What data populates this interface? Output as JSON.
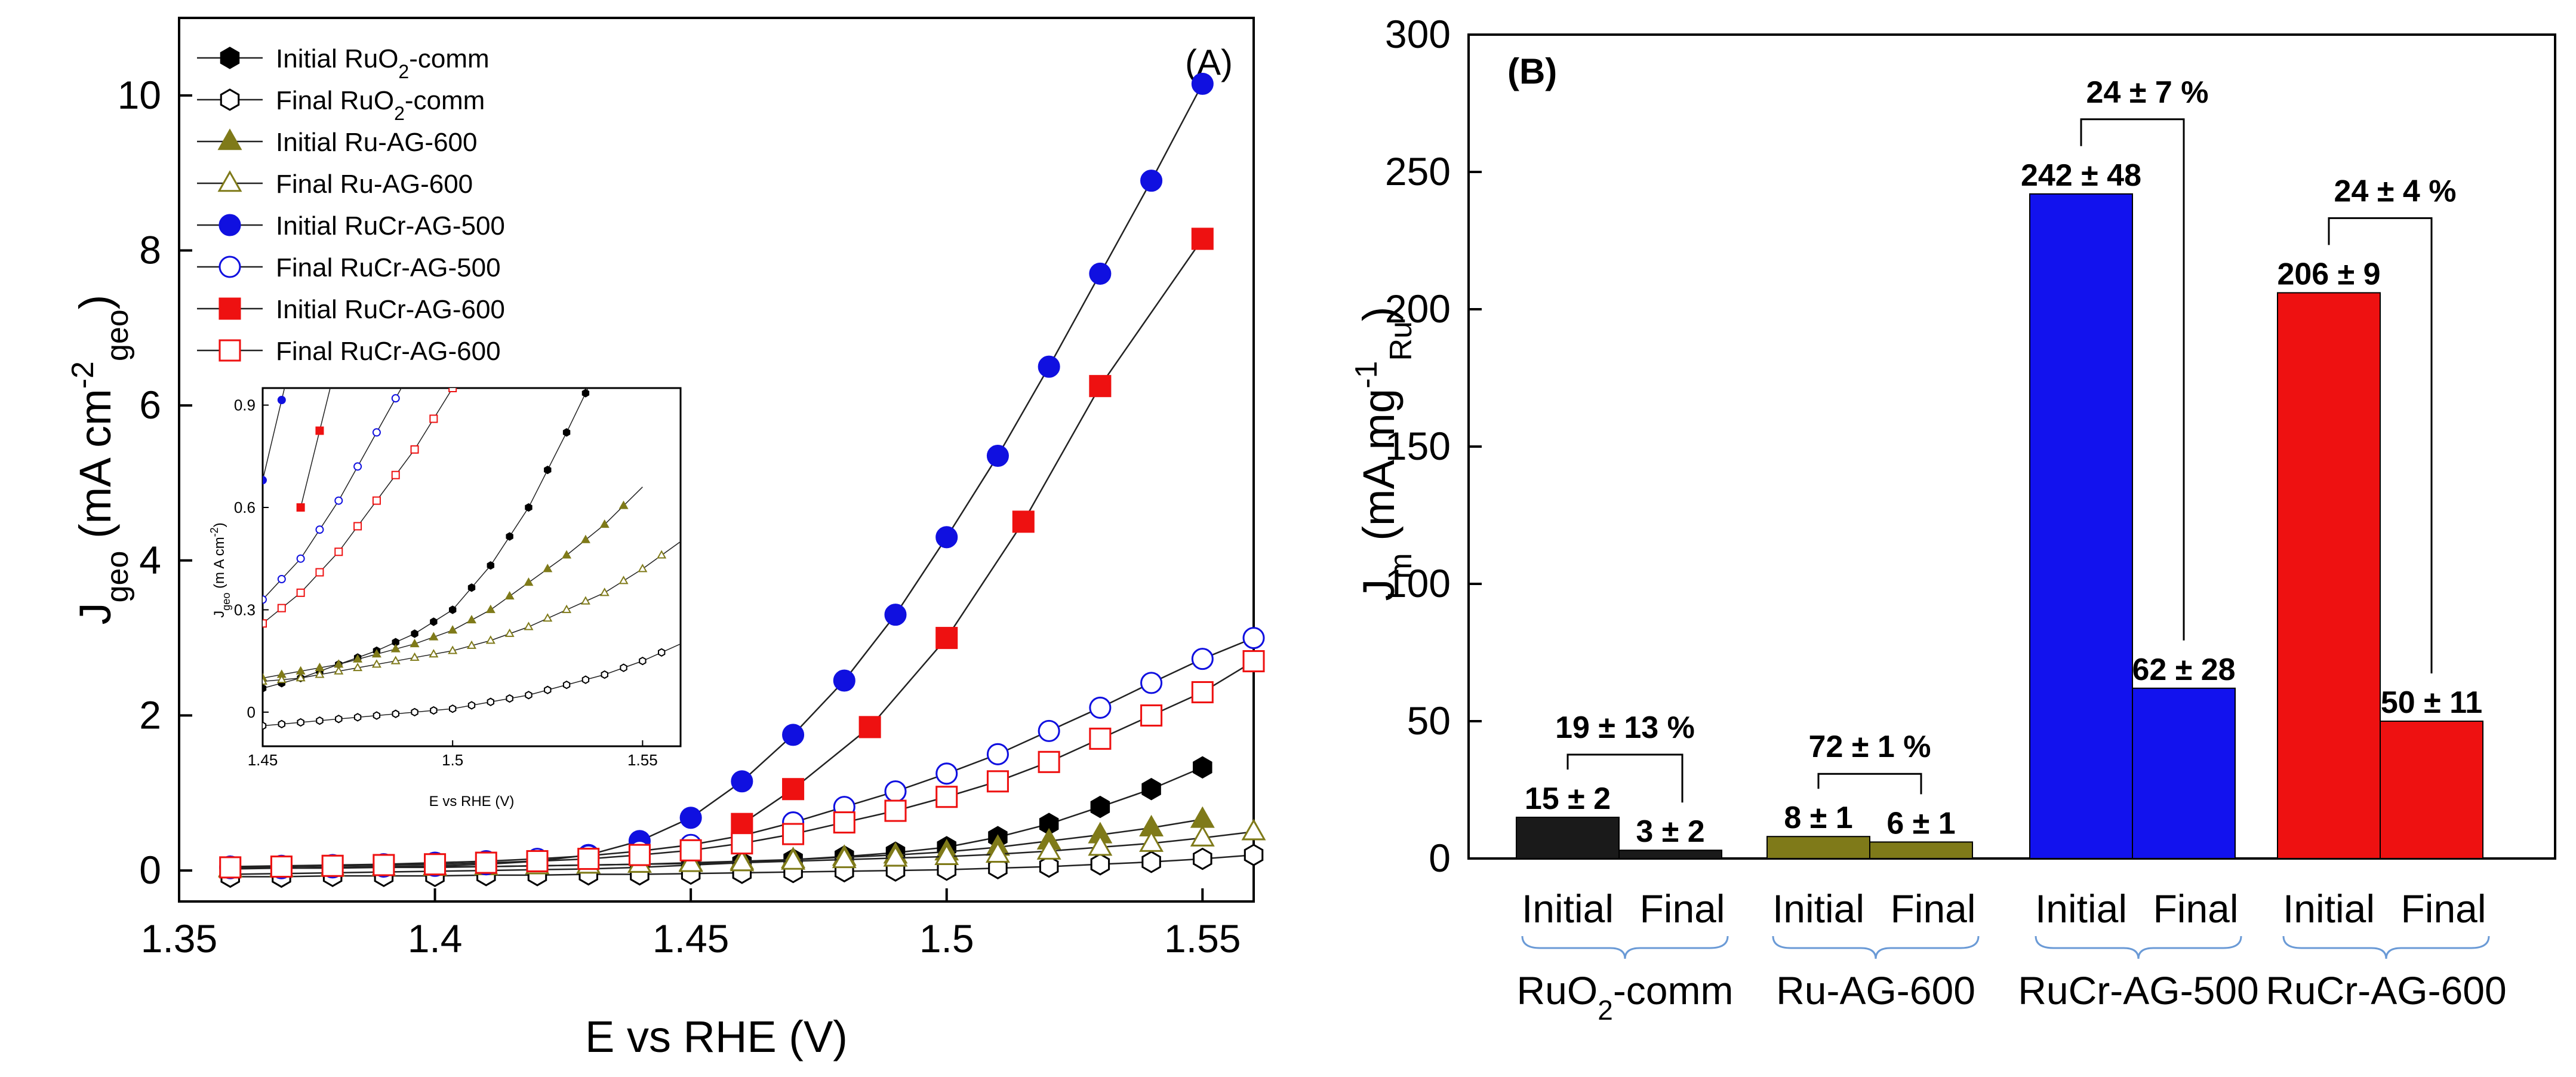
{
  "chart_data": [
    {
      "panel": "(A)",
      "type": "scatter",
      "xlabel": "E vs RHE (V)",
      "ylabel_main": "J",
      "ylabel_sub": "geo",
      "ylabel_unit": " (mA cm",
      "ylabel_exp": "-2",
      "ylabel_sub2": "geo",
      "ylabel_end": ")",
      "xlim": [
        1.35,
        1.56
      ],
      "ylim": [
        -0.4,
        11
      ],
      "xticks": [
        "1.35",
        "1.4",
        "1.45",
        "1.5",
        "1.55"
      ],
      "yticks": [
        "0",
        "2",
        "4",
        "6",
        "8",
        "10"
      ],
      "legend_position": "top-left",
      "series": [
        {
          "name": "Initial RuO",
          "sub": "2",
          "suffix": "-comm",
          "color": "#000000",
          "marker": "hexagon",
          "filled": true,
          "x": [
            1.36,
            1.37,
            1.38,
            1.39,
            1.4,
            1.41,
            1.42,
            1.43,
            1.44,
            1.45,
            1.46,
            1.47,
            1.48,
            1.49,
            1.5,
            1.51,
            1.52,
            1.53,
            1.54,
            1.55
          ],
          "y": [
            -0.05,
            -0.04,
            -0.03,
            -0.02,
            -0.01,
            0.0,
            0.01,
            0.02,
            0.04,
            0.07,
            0.1,
            0.14,
            0.18,
            0.23,
            0.3,
            0.43,
            0.6,
            0.82,
            1.05,
            1.33
          ]
        },
        {
          "name": "Final RuO",
          "sub": "2",
          "suffix": "-comm",
          "color": "#000000",
          "marker": "hexagon",
          "filled": false,
          "x": [
            1.36,
            1.37,
            1.38,
            1.39,
            1.4,
            1.41,
            1.42,
            1.43,
            1.44,
            1.45,
            1.46,
            1.47,
            1.48,
            1.49,
            1.5,
            1.51,
            1.52,
            1.53,
            1.54,
            1.55,
            1.56
          ],
          "y": [
            -0.08,
            -0.08,
            -0.07,
            -0.07,
            -0.07,
            -0.06,
            -0.06,
            -0.05,
            -0.05,
            -0.04,
            -0.03,
            -0.02,
            -0.01,
            0.0,
            0.01,
            0.03,
            0.05,
            0.08,
            0.11,
            0.15,
            0.2
          ]
        },
        {
          "name": "Initial Ru-AG-600",
          "sub": "",
          "suffix": "",
          "color": "#7f7a19",
          "marker": "triangle",
          "filled": true,
          "x": [
            1.36,
            1.37,
            1.38,
            1.39,
            1.4,
            1.41,
            1.42,
            1.43,
            1.44,
            1.45,
            1.46,
            1.47,
            1.48,
            1.49,
            1.5,
            1.51,
            1.52,
            1.53,
            1.54,
            1.55
          ],
          "y": [
            0.02,
            0.03,
            0.03,
            0.04,
            0.04,
            0.05,
            0.06,
            0.07,
            0.08,
            0.1,
            0.12,
            0.14,
            0.17,
            0.2,
            0.24,
            0.3,
            0.38,
            0.46,
            0.55,
            0.66
          ]
        },
        {
          "name": "Final Ru-AG-600",
          "sub": "",
          "suffix": "",
          "color": "#7f7a19",
          "marker": "triangle",
          "filled": false,
          "x": [
            1.36,
            1.37,
            1.38,
            1.39,
            1.4,
            1.41,
            1.42,
            1.43,
            1.44,
            1.45,
            1.46,
            1.47,
            1.48,
            1.49,
            1.5,
            1.51,
            1.52,
            1.53,
            1.54,
            1.55,
            1.56
          ],
          "y": [
            0.03,
            0.03,
            0.04,
            0.04,
            0.05,
            0.05,
            0.06,
            0.07,
            0.08,
            0.09,
            0.1,
            0.12,
            0.14,
            0.16,
            0.18,
            0.21,
            0.25,
            0.3,
            0.35,
            0.42,
            0.5
          ]
        },
        {
          "name": "Initial RuCr-AG-500",
          "sub": "",
          "suffix": "",
          "color": "#1010e0",
          "marker": "circle",
          "filled": true,
          "x": [
            1.36,
            1.37,
            1.38,
            1.39,
            1.4,
            1.41,
            1.42,
            1.43,
            1.44,
            1.45,
            1.46,
            1.47,
            1.48,
            1.49,
            1.5,
            1.51,
            1.52,
            1.53,
            1.54,
            1.55
          ],
          "y": [
            0.03,
            0.03,
            0.04,
            0.05,
            0.06,
            0.08,
            0.12,
            0.2,
            0.38,
            0.68,
            1.15,
            1.75,
            2.45,
            3.3,
            4.3,
            5.35,
            6.5,
            7.7,
            8.9,
            10.15
          ]
        },
        {
          "name": "Final RuCr-AG-500",
          "sub": "",
          "suffix": "",
          "color": "#1010e0",
          "marker": "circle",
          "filled": false,
          "x": [
            1.36,
            1.37,
            1.38,
            1.39,
            1.4,
            1.41,
            1.42,
            1.43,
            1.44,
            1.45,
            1.46,
            1.47,
            1.48,
            1.49,
            1.5,
            1.51,
            1.52,
            1.53,
            1.54,
            1.55,
            1.56
          ],
          "y": [
            0.05,
            0.06,
            0.07,
            0.08,
            0.1,
            0.12,
            0.15,
            0.19,
            0.25,
            0.33,
            0.45,
            0.62,
            0.82,
            1.02,
            1.25,
            1.5,
            1.8,
            2.1,
            2.42,
            2.73,
            3.0
          ]
        },
        {
          "name": "Initial RuCr-AG-600",
          "sub": "",
          "suffix": "",
          "color": "#ee1111",
          "marker": "square",
          "filled": true,
          "x": [
            1.46,
            1.47,
            1.485,
            1.5,
            1.515,
            1.53,
            1.55
          ],
          "y": [
            0.6,
            1.05,
            1.85,
            3.0,
            4.5,
            6.25,
            8.15
          ]
        },
        {
          "name": "Final RuCr-AG-600",
          "sub": "",
          "suffix": "",
          "color": "#ee1111",
          "marker": "square",
          "filled": false,
          "x": [
            1.36,
            1.37,
            1.38,
            1.39,
            1.4,
            1.41,
            1.42,
            1.43,
            1.44,
            1.45,
            1.46,
            1.47,
            1.48,
            1.49,
            1.5,
            1.51,
            1.52,
            1.53,
            1.54,
            1.55,
            1.56
          ],
          "y": [
            0.04,
            0.05,
            0.06,
            0.07,
            0.08,
            0.1,
            0.12,
            0.15,
            0.2,
            0.26,
            0.35,
            0.47,
            0.62,
            0.77,
            0.95,
            1.15,
            1.4,
            1.7,
            2.0,
            2.3,
            2.7
          ]
        }
      ],
      "inset": {
        "xlabel": "E vs RHE (V)",
        "ylabel": "J",
        "ylabel_sub": "geo",
        "ylabel_unit": " (m A cm",
        "ylabel_exp": "-2",
        "ylabel_end": ")",
        "xlim": [
          1.45,
          1.56
        ],
        "ylim": [
          -0.1,
          0.95
        ],
        "xticks": [
          "1.45",
          "1.5",
          "1.55"
        ],
        "yticks": [
          "0",
          "0.3",
          "0.6",
          "0.9"
        ]
      }
    },
    {
      "panel": "(B)",
      "type": "bar",
      "ylabel_main": "J",
      "ylabel_sub": "m",
      "ylabel_unit": " (mA mg",
      "ylabel_exp": "-1",
      "ylabel_sub2": "Ru",
      "ylabel_end": ")",
      "ylim": [
        0,
        300
      ],
      "yticks": [
        "0",
        "50",
        "100",
        "150",
        "200",
        "250",
        "300"
      ],
      "groups": [
        {
          "name": "RuO",
          "sub": "2",
          "suffix": "-comm",
          "color": "#1a1a1a",
          "initial": 15,
          "final": 3,
          "initial_label": "15 ± 2",
          "final_label": "3 ± 2",
          "retention": "19 ± 13 %"
        },
        {
          "name": "Ru-AG-600",
          "sub": "",
          "suffix": "",
          "color": "#7f7a19",
          "initial": 8,
          "final": 6,
          "initial_label": "8 ± 1",
          "final_label": "6 ± 1",
          "retention": "72 ± 1 %"
        },
        {
          "name": "RuCr-AG-500",
          "sub": "",
          "suffix": "",
          "color": "#1212ee",
          "initial": 242,
          "final": 62,
          "initial_label": "242 ± 48",
          "final_label": "62 ± 28",
          "retention": "24 ± 7 %"
        },
        {
          "name": "RuCr-AG-600",
          "sub": "",
          "suffix": "",
          "color": "#ee1111",
          "initial": 206,
          "final": 50,
          "initial_label": "206 ± 9",
          "final_label": "50 ± 11",
          "retention": "24 ± 4 %"
        }
      ],
      "bar_labels": {
        "initial": "Initial",
        "final": "Final"
      }
    }
  ]
}
